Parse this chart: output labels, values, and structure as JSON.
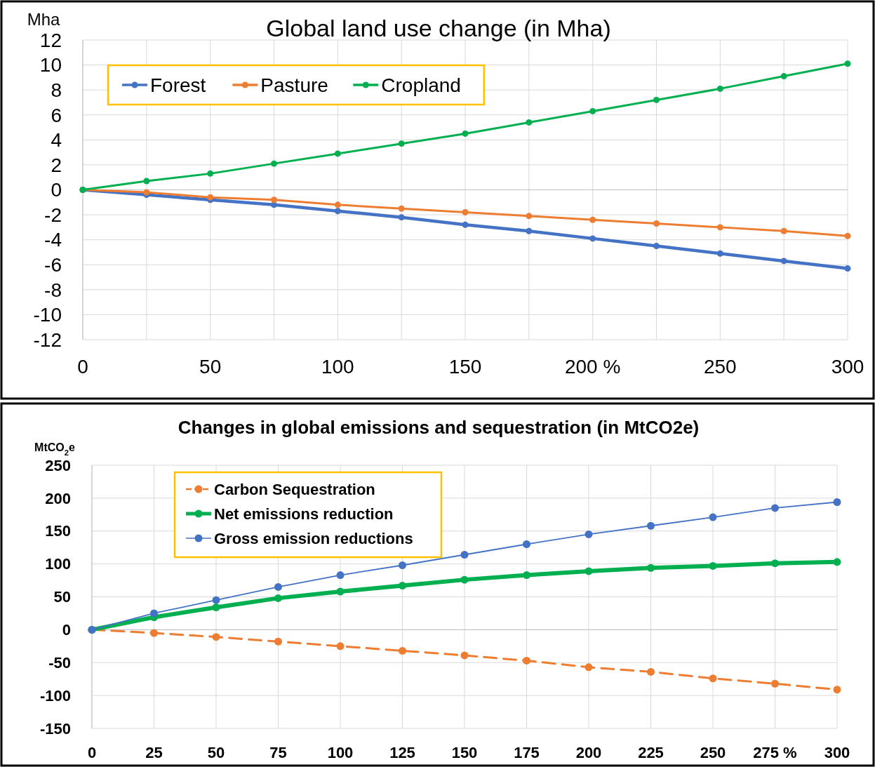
{
  "chart_data": [
    {
      "type": "line",
      "title": "Global land use change (in Mha)",
      "ylabel": "Mha",
      "x": [
        0,
        25,
        50,
        75,
        100,
        125,
        150,
        175,
        200,
        225,
        250,
        275,
        300
      ],
      "series": [
        {
          "name": "Forest",
          "color": "#4472c4",
          "values": [
            0,
            -0.4,
            -0.8,
            -1.2,
            -1.7,
            -2.2,
            -2.8,
            -3.3,
            -3.9,
            -4.5,
            -5.1,
            -5.7,
            -6.3
          ]
        },
        {
          "name": "Pasture",
          "color": "#ed7d31",
          "values": [
            0,
            -0.2,
            -0.6,
            -0.8,
            -1.2,
            -1.5,
            -1.8,
            -2.1,
            -2.4,
            -2.7,
            -3.0,
            -3.3,
            -3.7
          ]
        },
        {
          "name": "Cropland",
          "color": "#00b050",
          "values": [
            0,
            0.7,
            1.3,
            2.1,
            2.9,
            3.7,
            4.5,
            5.4,
            6.3,
            7.2,
            8.1,
            9.1,
            10.1
          ]
        }
      ],
      "xlim": [
        0,
        300
      ],
      "xticks": [
        0,
        {
          "value": 25,
          "label": null
        },
        50,
        {
          "value": 75,
          "label": null
        },
        100,
        {
          "value": 125,
          "label": null
        },
        150,
        {
          "value": 175,
          "label": null
        },
        {
          "value": 200,
          "label": "200 %"
        },
        {
          "value": 225,
          "label": null
        },
        250,
        {
          "value": 275,
          "label": null
        },
        300
      ],
      "ylim": [
        -12,
        12
      ],
      "yticks": [
        -12,
        -10,
        -8,
        -6,
        -4,
        -2,
        0,
        2,
        4,
        6,
        8,
        10,
        12
      ],
      "grid": true,
      "legend": "top left",
      "marker": "circle",
      "line_style": "solid"
    },
    {
      "type": "line",
      "title": "Changes in global emissions and sequestration (in MtCO2e)",
      "ylabel": "MtCO$_{2}$e",
      "x": [
        0,
        25,
        50,
        75,
        100,
        125,
        150,
        175,
        200,
        225,
        250,
        275,
        300
      ],
      "series": [
        {
          "name": "Carbon Sequestration",
          "color": "#ed7d31",
          "line_style": "dashed",
          "values": [
            0,
            -5,
            -11,
            -18,
            -25,
            -32,
            -39,
            -47,
            -57,
            -64,
            -74,
            -82,
            -91
          ]
        },
        {
          "name": "Net emissions reduction",
          "color": "#00b050",
          "values": [
            0,
            19,
            34,
            48,
            58,
            67,
            76,
            83,
            89,
            94,
            97,
            101,
            103
          ]
        },
        {
          "name": "Gross emission reductions",
          "color": "#4472c4",
          "values": [
            0,
            25,
            45,
            65,
            83,
            98,
            114,
            130,
            145,
            158,
            171,
            185,
            194
          ]
        }
      ],
      "xlim": [
        0,
        300
      ],
      "xticks": [
        0,
        25,
        50,
        75,
        100,
        125,
        150,
        175,
        200,
        225,
        250,
        {
          "value": 275,
          "label": "275 %"
        },
        300
      ],
      "ylim": [
        -150,
        250
      ],
      "yticks": [
        -150,
        -100,
        -50,
        0,
        50,
        100,
        150,
        200,
        250
      ],
      "grid": true,
      "legend": "top left",
      "marker": "circle",
      "line_style": "solid"
    }
  ]
}
